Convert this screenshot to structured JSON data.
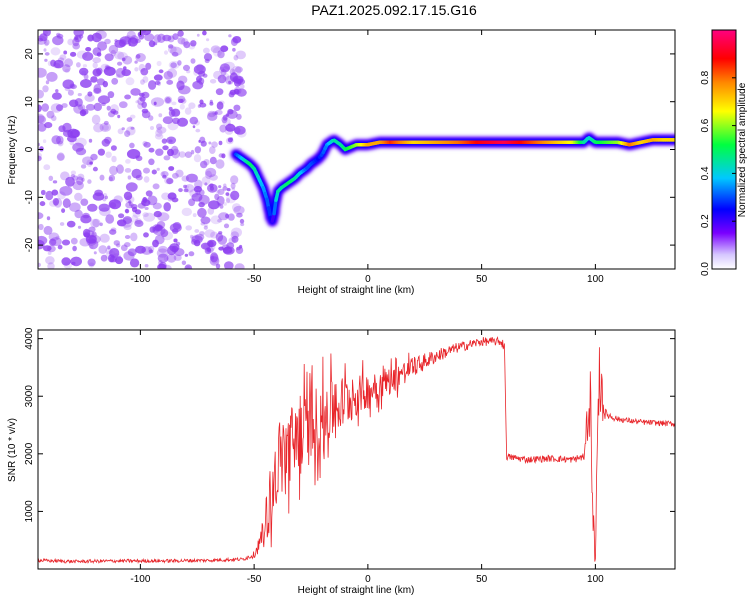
{
  "title": "PAZ1.2025.092.17.15.G16",
  "colors": {
    "snr_line": "#e8252a",
    "frame": "#000000",
    "scatter": "#8b3cf0",
    "colorbar_stops": [
      "#d6c7ff",
      "#7a00ff",
      "#0000ff",
      "#00c8ff",
      "#00ff40",
      "#ffff00",
      "#ff8800",
      "#ff0000",
      "#ff0080"
    ]
  },
  "chart_data": [
    {
      "type": "heatmap",
      "xlabel": "Height of straight line (km)",
      "ylabel": "Frequency (Hz)",
      "xlim": [
        -145,
        135
      ],
      "ylim": [
        -25,
        25
      ],
      "xticks": [
        -100,
        -50,
        0,
        50,
        100
      ],
      "xtick_labels": [
        "-100",
        "-50",
        "0",
        "50",
        "100"
      ],
      "yticks": [
        -20,
        -10,
        0,
        10,
        20
      ],
      "ytick_labels": [
        "-20",
        "-10",
        "0",
        "10",
        "20"
      ],
      "colorbar": {
        "label": "Normalized spectral amplitude",
        "range": [
          0,
          1
        ],
        "ticks": [
          0,
          0.2,
          0.4,
          0.6,
          0.8
        ],
        "tick_labels": [
          "0.0",
          "0.2",
          "0.4",
          "0.6",
          "0.8"
        ]
      },
      "noise_region_x": [
        -145,
        -55
      ],
      "ridge": {
        "x": [
          -58,
          -55,
          -52,
          -50,
          -48,
          -46,
          -44,
          -43,
          -42,
          -41,
          -40,
          -38,
          -35,
          -32,
          -30,
          -27,
          -25,
          -22,
          -20,
          -18,
          -15,
          -12,
          -10,
          -5,
          0,
          5,
          10,
          20,
          30,
          40,
          50,
          60,
          70,
          80,
          90,
          95,
          97,
          100,
          105,
          110,
          115,
          120,
          125,
          130,
          135
        ],
        "y": [
          -1,
          -2,
          -3,
          -4,
          -6,
          -8,
          -11,
          -14,
          -15,
          -13,
          -9,
          -8,
          -7,
          -6,
          -5,
          -4,
          -3,
          -2,
          -1,
          1,
          2,
          1,
          0,
          1,
          1,
          1.5,
          1.5,
          1.5,
          1.5,
          1.5,
          1.5,
          1.5,
          1.5,
          1.5,
          1.5,
          1.5,
          2.5,
          1.5,
          1.5,
          1.5,
          1,
          1.5,
          2,
          2,
          2
        ],
        "amplitude": [
          0.3,
          0.4,
          0.5,
          0.45,
          0.4,
          0.35,
          0.3,
          0.25,
          0.2,
          0.35,
          0.45,
          0.45,
          0.5,
          0.45,
          0.4,
          0.3,
          0.3,
          0.25,
          0.3,
          0.35,
          0.45,
          0.45,
          0.5,
          0.6,
          0.75,
          0.75,
          0.85,
          0.7,
          0.75,
          0.8,
          0.9,
          0.95,
          0.85,
          0.75,
          0.65,
          0.45,
          0.4,
          0.5,
          0.55,
          0.6,
          0.8,
          0.7,
          0.75,
          0.7,
          0.7
        ]
      }
    },
    {
      "type": "line",
      "xlabel": "Height of straight line (km)",
      "ylabel": "SNR (10 * v/v)",
      "xlim": [
        -145,
        135
      ],
      "ylim": [
        0,
        4150
      ],
      "xticks": [
        -100,
        -50,
        0,
        50,
        100
      ],
      "xtick_labels": [
        "-100",
        "-50",
        "0",
        "50",
        "100"
      ],
      "yticks": [
        1000,
        2000,
        3000,
        4000
      ],
      "ytick_labels": [
        "1000",
        "2000",
        "3000",
        "4000"
      ],
      "series": [
        {
          "x": [
            -145,
            -130,
            -110,
            -90,
            -70,
            -55,
            -50,
            -47,
            -45,
            -42,
            -40,
            -35,
            -30,
            -25,
            -20,
            -15,
            -10,
            -5,
            0,
            10,
            20,
            30,
            40,
            50,
            58,
            60,
            61,
            70,
            80,
            90,
            95,
            98,
            99,
            100,
            101,
            102,
            104,
            110,
            120,
            130,
            135
          ],
          "y": [
            150,
            130,
            140,
            140,
            150,
            170,
            250,
            500,
            800,
            1300,
            1800,
            2100,
            2300,
            2500,
            2600,
            2800,
            2900,
            3000,
            3100,
            3300,
            3500,
            3700,
            3850,
            3950,
            3950,
            3900,
            1950,
            1900,
            1920,
            1900,
            1950,
            2800,
            600,
            200,
            2400,
            3300,
            2700,
            2600,
            2550,
            2530,
            2520
          ],
          "spread": [
            50,
            50,
            50,
            50,
            50,
            50,
            100,
            300,
            600,
            900,
            1100,
            1200,
            1200,
            1100,
            1000,
            900,
            800,
            600,
            500,
            400,
            300,
            200,
            150,
            130,
            120,
            200,
            100,
            100,
            100,
            100,
            120,
            800,
            600,
            200,
            700,
            800,
            150,
            80,
            80,
            80,
            80
          ]
        }
      ]
    }
  ]
}
